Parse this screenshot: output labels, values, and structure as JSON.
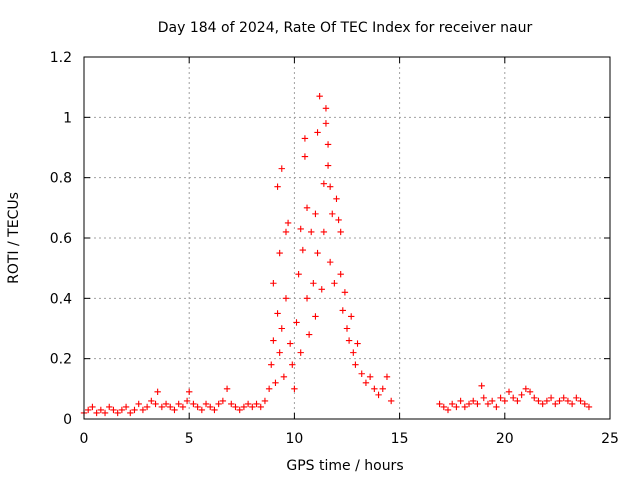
{
  "chart_data": {
    "type": "scatter",
    "title": "Day 184 of 2024, Rate Of TEC Index for receiver naur",
    "xlabel": "GPS time / hours",
    "ylabel": "ROTI / TECUs",
    "xlim": [
      0,
      25
    ],
    "ylim": [
      0,
      1.2
    ],
    "xticks": [
      0,
      5,
      10,
      15,
      20,
      25
    ],
    "yticks": [
      0,
      0.2,
      0.4,
      0.6,
      0.8,
      1,
      1.2
    ],
    "xtick_labels": [
      "0",
      "5",
      "10",
      "15",
      "20",
      "25"
    ],
    "ytick_labels": [
      "0",
      "0.2",
      "0.4",
      "0.6",
      "0.8",
      "1",
      "1.2"
    ],
    "grid": true,
    "marker": "+",
    "color": "#ff0000",
    "notes": "Dense ROTI scatter; baseline ~0.02-0.05 TECU/min from 0-9 h and 16.8-24 h, enhanced irregularities 8.8-14.6 h peaking near 11.2 h (~1.07). No data 14.6-16.8 h.",
    "series": [
      {
        "name": "ROTI",
        "points": [
          [
            0.0,
            0.02
          ],
          [
            0.2,
            0.03
          ],
          [
            0.4,
            0.04
          ],
          [
            0.6,
            0.02
          ],
          [
            0.8,
            0.03
          ],
          [
            1.0,
            0.02
          ],
          [
            1.2,
            0.04
          ],
          [
            1.4,
            0.03
          ],
          [
            1.6,
            0.02
          ],
          [
            1.8,
            0.03
          ],
          [
            2.0,
            0.04
          ],
          [
            2.2,
            0.02
          ],
          [
            2.4,
            0.03
          ],
          [
            2.6,
            0.05
          ],
          [
            2.8,
            0.03
          ],
          [
            3.0,
            0.04
          ],
          [
            3.2,
            0.06
          ],
          [
            3.4,
            0.05
          ],
          [
            3.5,
            0.09
          ],
          [
            3.7,
            0.04
          ],
          [
            3.9,
            0.05
          ],
          [
            4.1,
            0.04
          ],
          [
            4.3,
            0.03
          ],
          [
            4.5,
            0.05
          ],
          [
            4.7,
            0.04
          ],
          [
            4.9,
            0.06
          ],
          [
            5.0,
            0.09
          ],
          [
            5.2,
            0.05
          ],
          [
            5.4,
            0.04
          ],
          [
            5.6,
            0.03
          ],
          [
            5.8,
            0.05
          ],
          [
            6.0,
            0.04
          ],
          [
            6.2,
            0.03
          ],
          [
            6.4,
            0.05
          ],
          [
            6.6,
            0.06
          ],
          [
            6.8,
            0.1
          ],
          [
            7.0,
            0.05
          ],
          [
            7.2,
            0.04
          ],
          [
            7.4,
            0.03
          ],
          [
            7.6,
            0.04
          ],
          [
            7.8,
            0.05
          ],
          [
            8.0,
            0.04
          ],
          [
            8.2,
            0.05
          ],
          [
            8.4,
            0.04
          ],
          [
            8.6,
            0.06
          ],
          [
            8.8,
            0.1
          ],
          [
            8.9,
            0.18
          ],
          [
            9.0,
            0.26
          ],
          [
            9.0,
            0.45
          ],
          [
            9.1,
            0.12
          ],
          [
            9.2,
            0.35
          ],
          [
            9.2,
            0.77
          ],
          [
            9.3,
            0.22
          ],
          [
            9.3,
            0.55
          ],
          [
            9.4,
            0.83
          ],
          [
            9.4,
            0.3
          ],
          [
            9.5,
            0.14
          ],
          [
            9.6,
            0.62
          ],
          [
            9.6,
            0.4
          ],
          [
            9.7,
            0.65
          ],
          [
            9.8,
            0.25
          ],
          [
            9.9,
            0.18
          ],
          [
            10.0,
            0.1
          ],
          [
            10.1,
            0.32
          ],
          [
            10.2,
            0.48
          ],
          [
            10.3,
            0.63
          ],
          [
            10.3,
            0.22
          ],
          [
            10.4,
            0.56
          ],
          [
            10.5,
            0.93
          ],
          [
            10.5,
            0.87
          ],
          [
            10.6,
            0.4
          ],
          [
            10.6,
            0.7
          ],
          [
            10.7,
            0.28
          ],
          [
            10.8,
            0.62
          ],
          [
            10.9,
            0.45
          ],
          [
            11.0,
            0.68
          ],
          [
            11.0,
            0.34
          ],
          [
            11.1,
            0.55
          ],
          [
            11.1,
            0.95
          ],
          [
            11.2,
            1.07
          ],
          [
            11.3,
            0.43
          ],
          [
            11.4,
            0.78
          ],
          [
            11.4,
            0.62
          ],
          [
            11.5,
            1.03
          ],
          [
            11.5,
            0.98
          ],
          [
            11.6,
            0.91
          ],
          [
            11.6,
            0.84
          ],
          [
            11.7,
            0.77
          ],
          [
            11.7,
            0.52
          ],
          [
            11.8,
            0.68
          ],
          [
            11.9,
            0.45
          ],
          [
            12.0,
            0.73
          ],
          [
            12.1,
            0.66
          ],
          [
            12.2,
            0.62
          ],
          [
            12.2,
            0.48
          ],
          [
            12.3,
            0.36
          ],
          [
            12.4,
            0.42
          ],
          [
            12.5,
            0.3
          ],
          [
            12.6,
            0.26
          ],
          [
            12.7,
            0.34
          ],
          [
            12.8,
            0.22
          ],
          [
            12.9,
            0.18
          ],
          [
            13.0,
            0.25
          ],
          [
            13.2,
            0.15
          ],
          [
            13.4,
            0.12
          ],
          [
            13.6,
            0.14
          ],
          [
            13.8,
            0.1
          ],
          [
            14.0,
            0.08
          ],
          [
            14.2,
            0.1
          ],
          [
            14.4,
            0.14
          ],
          [
            14.6,
            0.06
          ],
          [
            16.9,
            0.05
          ],
          [
            17.1,
            0.04
          ],
          [
            17.3,
            0.03
          ],
          [
            17.5,
            0.05
          ],
          [
            17.7,
            0.04
          ],
          [
            17.9,
            0.06
          ],
          [
            18.1,
            0.04
          ],
          [
            18.3,
            0.05
          ],
          [
            18.5,
            0.06
          ],
          [
            18.7,
            0.05
          ],
          [
            18.9,
            0.11
          ],
          [
            19.0,
            0.07
          ],
          [
            19.2,
            0.05
          ],
          [
            19.4,
            0.06
          ],
          [
            19.6,
            0.04
          ],
          [
            19.8,
            0.07
          ],
          [
            20.0,
            0.06
          ],
          [
            20.2,
            0.09
          ],
          [
            20.4,
            0.07
          ],
          [
            20.6,
            0.06
          ],
          [
            20.8,
            0.08
          ],
          [
            21.0,
            0.1
          ],
          [
            21.2,
            0.09
          ],
          [
            21.4,
            0.07
          ],
          [
            21.6,
            0.06
          ],
          [
            21.8,
            0.05
          ],
          [
            22.0,
            0.06
          ],
          [
            22.2,
            0.07
          ],
          [
            22.4,
            0.05
          ],
          [
            22.6,
            0.06
          ],
          [
            22.8,
            0.07
          ],
          [
            23.0,
            0.06
          ],
          [
            23.2,
            0.05
          ],
          [
            23.4,
            0.07
          ],
          [
            23.6,
            0.06
          ],
          [
            23.8,
            0.05
          ],
          [
            24.0,
            0.04
          ]
        ]
      }
    ]
  }
}
